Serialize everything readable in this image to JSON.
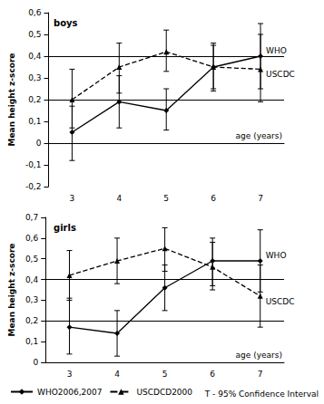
{
  "chart_data": [
    {
      "type": "line",
      "title": "boys",
      "categories": [
        3,
        4,
        5,
        6,
        7
      ],
      "x_label": "age (years)",
      "y_label": "Mean height z-score",
      "ylim": [
        -0.2,
        0.6
      ],
      "yticks": [
        {
          "value": -0.2,
          "label": "-0,2"
        },
        {
          "value": -0.1,
          "label": "-0,1"
        },
        0,
        {
          "value": 0.1,
          "label": "0,1"
        },
        {
          "value": 0.2,
          "label": "0,2"
        },
        {
          "value": 0.3,
          "label": "0,3"
        },
        {
          "value": 0.4,
          "label": "0,4"
        },
        {
          "value": 0.5,
          "label": "0,5"
        },
        {
          "value": 0.6,
          "label": "0,6"
        }
      ],
      "reference_lines": [
        0.2,
        0.4
      ],
      "legend": "bottom",
      "ci_legend_label": "T - 95% Confidence Interval",
      "series": [
        {
          "name": "WHO2006,2007",
          "end_label": "WHO",
          "color": "#000000",
          "marker": "diamond",
          "line_style": "solid",
          "values": [
            0.05,
            0.19,
            0.15,
            0.35,
            0.4
          ],
          "ci_low": [
            -0.08,
            0.07,
            0.06,
            0.24,
            0.25
          ],
          "ci_high": [
            0.17,
            0.31,
            0.25,
            0.46,
            0.55
          ]
        },
        {
          "name": "USCDCD2000",
          "end_label": "USCDC",
          "color": "#000000",
          "marker": "triangle",
          "line_style": "dashed",
          "values": [
            0.2,
            0.35,
            0.42,
            0.35,
            0.34
          ],
          "ci_low": [
            0.07,
            0.23,
            0.33,
            0.25,
            0.19
          ],
          "ci_high": [
            0.34,
            0.46,
            0.52,
            0.45,
            0.5
          ]
        }
      ]
    },
    {
      "type": "line",
      "title": "girls",
      "categories": [
        3,
        4,
        5,
        6,
        7
      ],
      "x_label": "age (years)",
      "y_label": "Mean height z-score",
      "ylim": [
        0,
        0.7
      ],
      "yticks": [
        0,
        {
          "value": 0.1,
          "label": "0,1"
        },
        {
          "value": 0.2,
          "label": "0,2"
        },
        {
          "value": 0.3,
          "label": "0,3"
        },
        {
          "value": 0.4,
          "label": "0,4"
        },
        {
          "value": 0.5,
          "label": "0,5"
        },
        {
          "value": 0.6,
          "label": "0,6"
        },
        {
          "value": 0.7,
          "label": "0,7"
        }
      ],
      "reference_lines": [
        0.2,
        0.4
      ],
      "series": [
        {
          "name": "WHO2006,2007",
          "end_label": "WHO",
          "color": "#000000",
          "marker": "diamond",
          "line_style": "solid",
          "values": [
            0.17,
            0.14,
            0.36,
            0.49,
            0.49
          ],
          "ci_low": [
            0.04,
            0.03,
            0.25,
            0.37,
            0.34
          ],
          "ci_high": [
            0.31,
            0.25,
            0.47,
            0.6,
            0.64
          ]
        },
        {
          "name": "USCDCD2000",
          "end_label": "USCDC",
          "color": "#000000",
          "marker": "triangle",
          "line_style": "dashed",
          "values": [
            0.42,
            0.49,
            0.55,
            0.46,
            0.32
          ],
          "ci_low": [
            0.3,
            0.38,
            0.44,
            0.35,
            0.17
          ],
          "ci_high": [
            0.54,
            0.6,
            0.65,
            0.58,
            0.47
          ]
        }
      ]
    }
  ]
}
